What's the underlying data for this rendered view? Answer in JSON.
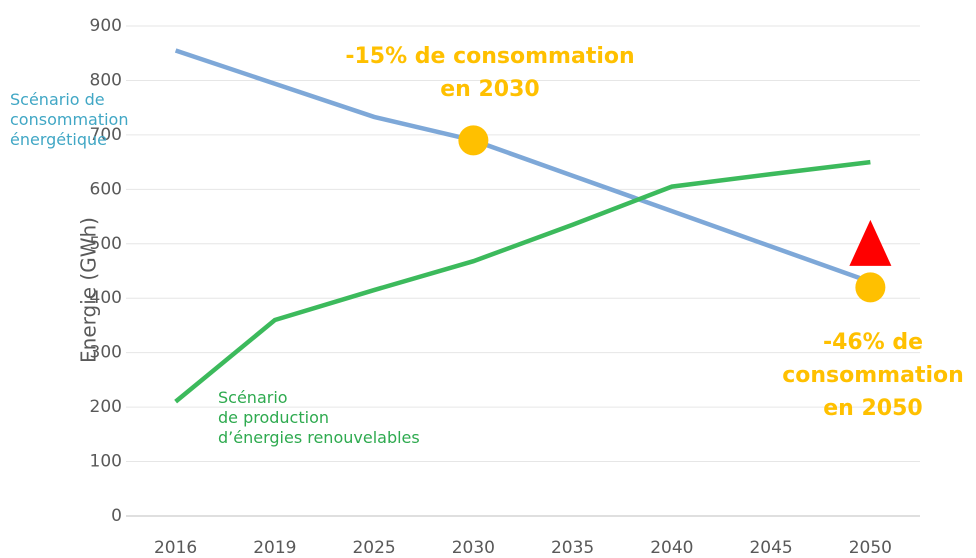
{
  "chart_data": {
    "type": "line",
    "y_label": "Energie (GWh)",
    "categories": [
      "2016",
      "2019",
      "2025",
      "2030",
      "2035",
      "2040",
      "2045",
      "2050"
    ],
    "series": [
      {
        "name": "Scénario de\nconsommation\nénergétique",
        "color": "#7ea8d8",
        "values": [
          855,
          794,
          733,
          690,
          625,
          560,
          495,
          430
        ]
      },
      {
        "name": "Scénario\nde production\nd’énergies renouvelables",
        "color": "#3cba5c",
        "values": [
          210,
          360,
          415,
          468,
          535,
          605,
          628,
          650
        ]
      }
    ],
    "markers": [
      {
        "category": "2030",
        "value": 690,
        "shape": "circle",
        "color": "#ffc000"
      },
      {
        "category": "2050",
        "value": 420,
        "shape": "circle",
        "color": "#ffc000"
      },
      {
        "category": "2050",
        "value": 498,
        "shape": "triangle",
        "color": "#ff0000"
      }
    ],
    "annotations": [
      {
        "text": "-15% de consommation\nen 2030",
        "color": "#ffc000"
      },
      {
        "text": "-46% de\nconsommation\nen 2050",
        "color": "#ffc000"
      }
    ],
    "ylim": [
      0,
      900
    ],
    "yticks": [
      0,
      100,
      200,
      300,
      400,
      500,
      600,
      700,
      800,
      900
    ],
    "grid": true
  }
}
